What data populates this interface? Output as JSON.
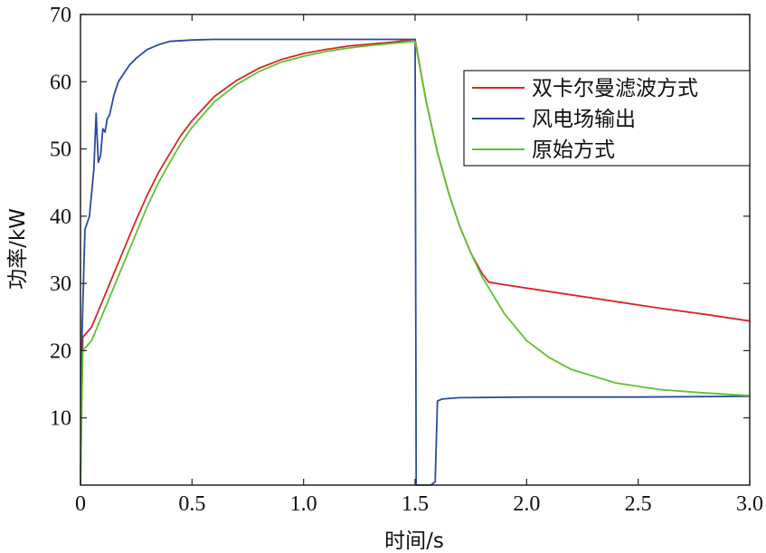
{
  "chart_data": {
    "type": "line",
    "title": "",
    "xlabel": "时间/s",
    "ylabel": "功率/kW",
    "xlim": [
      0,
      3.0
    ],
    "ylim": [
      0,
      70
    ],
    "xticks": [
      0,
      0.5,
      1.0,
      1.5,
      2.0,
      2.5,
      3.0
    ],
    "xtick_labels": [
      "0",
      "0.5",
      "1.0",
      "1.5",
      "2.0",
      "2.5",
      "3.0"
    ],
    "yticks": [
      10,
      20,
      30,
      40,
      50,
      60,
      70
    ],
    "ytick_labels": [
      "10",
      "20",
      "30",
      "40",
      "50",
      "60",
      "70"
    ],
    "grid": false,
    "legend_position": "top-right",
    "series": [
      {
        "name": "双卡尔曼滤波方式",
        "color": "#d62728",
        "x": [
          0,
          0.01,
          0.05,
          0.1,
          0.15,
          0.2,
          0.25,
          0.3,
          0.35,
          0.4,
          0.45,
          0.5,
          0.6,
          0.7,
          0.8,
          0.9,
          1.0,
          1.1,
          1.2,
          1.3,
          1.4,
          1.5,
          1.55,
          1.6,
          1.65,
          1.7,
          1.75,
          1.8,
          1.83,
          1.9,
          2.0,
          2.2,
          2.4,
          2.6,
          2.8,
          3.0
        ],
        "y": [
          0,
          22,
          23.5,
          27.5,
          31.5,
          35.5,
          39.5,
          43.2,
          46.5,
          49.3,
          52,
          54.2,
          57.8,
          60.2,
          62,
          63.3,
          64.2,
          64.8,
          65.3,
          65.6,
          65.9,
          66.3,
          57,
          49.5,
          43.5,
          38.5,
          34.5,
          31.5,
          30.2,
          29.8,
          29.3,
          28.3,
          27.3,
          26.3,
          25.4,
          24.4
        ]
      },
      {
        "name": "风电场输出",
        "color": "#2a4b9b",
        "x": [
          0,
          0.005,
          0.02,
          0.04,
          0.06,
          0.07,
          0.08,
          0.09,
          0.1,
          0.11,
          0.12,
          0.13,
          0.15,
          0.17,
          0.2,
          0.22,
          0.25,
          0.3,
          0.35,
          0.4,
          0.5,
          0.6,
          0.8,
          1.0,
          1.2,
          1.4,
          1.49,
          1.5,
          1.505,
          1.52,
          1.55,
          1.57,
          1.59,
          1.6,
          1.62,
          1.7,
          2.0,
          2.5,
          3.0
        ],
        "y": [
          0,
          20,
          38,
          40,
          47,
          55.3,
          48,
          49,
          53,
          52.5,
          54.5,
          55,
          58,
          60,
          61.5,
          62.5,
          63.5,
          64.8,
          65.5,
          66.0,
          66.2,
          66.3,
          66.3,
          66.3,
          66.3,
          66.3,
          66.3,
          66.3,
          0,
          0,
          0,
          0,
          0.5,
          12.5,
          12.8,
          13.0,
          13.1,
          13.1,
          13.2
        ]
      },
      {
        "name": "原始方式",
        "color": "#5ec22e",
        "x": [
          0,
          0.01,
          0.05,
          0.1,
          0.15,
          0.2,
          0.25,
          0.3,
          0.35,
          0.4,
          0.45,
          0.5,
          0.6,
          0.7,
          0.8,
          0.9,
          1.0,
          1.1,
          1.2,
          1.3,
          1.4,
          1.5,
          1.55,
          1.6,
          1.65,
          1.7,
          1.75,
          1.8,
          1.9,
          2.0,
          2.1,
          2.2,
          2.4,
          2.6,
          2.8,
          3.0
        ],
        "y": [
          0,
          20,
          21.5,
          25.5,
          29.5,
          33.5,
          37.5,
          41.5,
          45,
          48,
          50.8,
          53.2,
          57,
          59.6,
          61.5,
          62.9,
          63.8,
          64.5,
          65.0,
          65.4,
          65.7,
          66.0,
          57,
          49.5,
          43.5,
          38.5,
          34.5,
          31,
          25.5,
          21.5,
          19,
          17.2,
          15.2,
          14.2,
          13.7,
          13.3
        ]
      }
    ]
  }
}
